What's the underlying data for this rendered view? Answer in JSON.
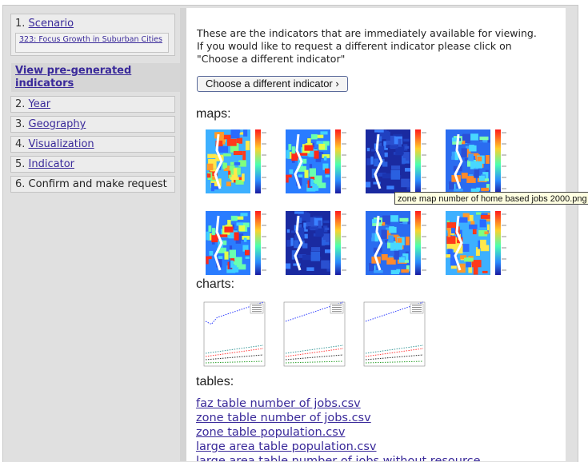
{
  "sidebar": {
    "step1": {
      "num": "1.",
      "label": "Scenario",
      "sub": "323: Focus Growth in Suburban Cities"
    },
    "active": {
      "line1": "View pre-generated",
      "line2": "indicators"
    },
    "step2": {
      "num": "2.",
      "label": "Year"
    },
    "step3": {
      "num": "3.",
      "label": "Geography"
    },
    "step4": {
      "num": "4.",
      "label": "Visualization"
    },
    "step5": {
      "num": "5.",
      "label": "Indicator"
    },
    "step6": {
      "num": "6.",
      "label": "Confirm and make request"
    }
  },
  "main": {
    "intro_line1": "These are the indicators that are immediately available for viewing.",
    "intro_line2": "If you would like to request a different indicator please click on",
    "intro_line3": "\"Choose a different indicator\"",
    "choose_button": "Choose a different indicator ›",
    "maps_heading": "maps:",
    "charts_heading": "charts:",
    "tables_heading": "tables:",
    "tooltip": "zone  map  number of home based jobs  2000.png",
    "tables": [
      "faz table number of jobs.csv",
      "zone table number of jobs.csv",
      "zone table population.csv",
      "large area table population.csv",
      "large area table number of jobs without resource"
    ]
  }
}
